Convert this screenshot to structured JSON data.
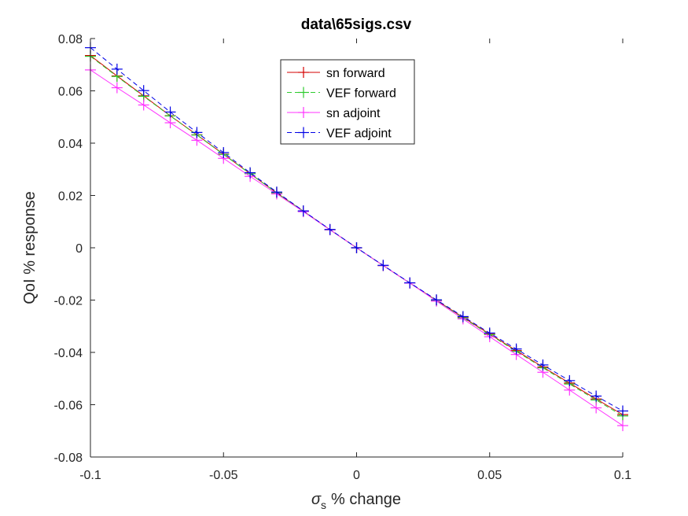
{
  "chart_data": {
    "type": "line",
    "title": "data\\65sigs.csv",
    "xlabel": "% change",
    "xlabel_symbol": "σ",
    "xlabel_subscript": "s",
    "ylabel": "QoI % response",
    "xlim": [
      -0.1,
      0.1
    ],
    "ylim": [
      -0.08,
      0.08
    ],
    "x_ticks": [
      -0.1,
      -0.05,
      0,
      0.05,
      0.1
    ],
    "x_tick_labels": [
      "-0.1",
      "-0.05",
      "0",
      "0.05",
      "0.1"
    ],
    "y_ticks": [
      -0.08,
      -0.06,
      -0.04,
      -0.02,
      0,
      0.02,
      0.04,
      0.06,
      0.08
    ],
    "y_tick_labels": [
      "-0.08",
      "-0.06",
      "-0.04",
      "-0.02",
      "0",
      "0.02",
      "0.04",
      "0.06",
      "0.08"
    ],
    "grid": false,
    "legend_position": "top-center",
    "x": [
      -0.1,
      -0.09,
      -0.08,
      -0.07,
      -0.06,
      -0.05,
      -0.04,
      -0.03,
      -0.02,
      -0.01,
      0,
      0.01,
      0.02,
      0.03,
      0.04,
      0.05,
      0.06,
      0.07,
      0.08,
      0.09,
      0.1
    ],
    "series": [
      {
        "name": "sn forward",
        "color": "#d40000",
        "dash": "solid",
        "marker": "+",
        "values": [
          0.0735,
          0.0657,
          0.0581,
          0.0505,
          0.0432,
          0.0358,
          0.0283,
          0.021,
          0.014,
          0.0069,
          0,
          -0.0068,
          -0.0135,
          -0.0201,
          -0.0266,
          -0.033,
          -0.0393,
          -0.0456,
          -0.0517,
          -0.0578,
          -0.0638
        ]
      },
      {
        "name": "VEF forward",
        "color": "#2ecc2e",
        "dash": "dashed",
        "marker": "+",
        "values": [
          0.0732,
          0.0655,
          0.0579,
          0.0504,
          0.0431,
          0.0357,
          0.0283,
          0.021,
          0.014,
          0.0069,
          0,
          -0.0068,
          -0.0135,
          -0.0202,
          -0.0268,
          -0.0332,
          -0.0396,
          -0.0459,
          -0.0521,
          -0.0582,
          -0.0643
        ]
      },
      {
        "name": "sn adjoint",
        "color": "#ff33ff",
        "dash": "solid",
        "marker": "+",
        "values": [
          0.068,
          0.0612,
          0.0546,
          0.0478,
          0.0411,
          0.0342,
          0.0273,
          0.0206,
          0.0138,
          0.0069,
          0,
          -0.0068,
          -0.0135,
          -0.0204,
          -0.0272,
          -0.034,
          -0.0408,
          -0.0476,
          -0.0544,
          -0.0612,
          -0.068
        ]
      },
      {
        "name": "VEF adjoint",
        "color": "#0000e6",
        "dash": "dashed",
        "marker": "+",
        "values": [
          0.0765,
          0.0683,
          0.0601,
          0.0519,
          0.0441,
          0.0364,
          0.0287,
          0.0213,
          0.0141,
          0.007,
          0,
          -0.0067,
          -0.0134,
          -0.0199,
          -0.0263,
          -0.0326,
          -0.0387,
          -0.0448,
          -0.0508,
          -0.0567,
          -0.0624
        ]
      }
    ]
  }
}
